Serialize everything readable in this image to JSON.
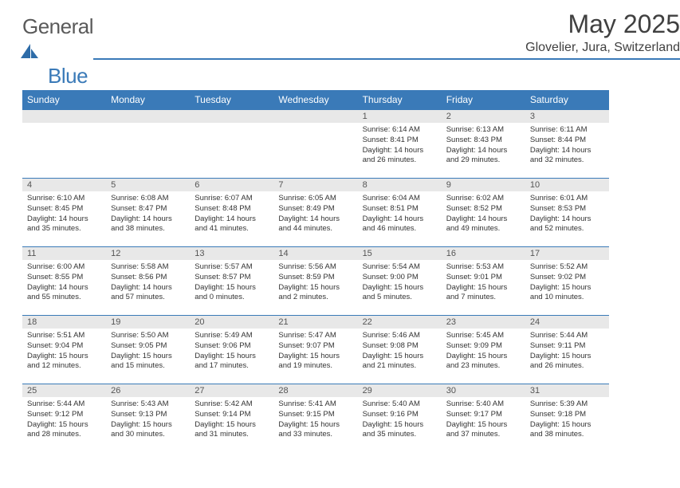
{
  "brand": {
    "part1": "General",
    "part2": "Blue"
  },
  "title": "May 2025",
  "location": "Glovelier, Jura, Switzerland",
  "header_bg": "#3a7ab8",
  "header_fg": "#ffffff",
  "daynum_bg": "#e8e8e8",
  "border_color": "#3a7ab8",
  "body_fontsize": 9.5,
  "days_of_week": [
    "Sunday",
    "Monday",
    "Tuesday",
    "Wednesday",
    "Thursday",
    "Friday",
    "Saturday"
  ],
  "weeks": [
    [
      {
        "n": "",
        "lines": []
      },
      {
        "n": "",
        "lines": []
      },
      {
        "n": "",
        "lines": []
      },
      {
        "n": "",
        "lines": []
      },
      {
        "n": "1",
        "lines": [
          "Sunrise: 6:14 AM",
          "Sunset: 8:41 PM",
          "Daylight: 14 hours and 26 minutes."
        ]
      },
      {
        "n": "2",
        "lines": [
          "Sunrise: 6:13 AM",
          "Sunset: 8:43 PM",
          "Daylight: 14 hours and 29 minutes."
        ]
      },
      {
        "n": "3",
        "lines": [
          "Sunrise: 6:11 AM",
          "Sunset: 8:44 PM",
          "Daylight: 14 hours and 32 minutes."
        ]
      }
    ],
    [
      {
        "n": "4",
        "lines": [
          "Sunrise: 6:10 AM",
          "Sunset: 8:45 PM",
          "Daylight: 14 hours and 35 minutes."
        ]
      },
      {
        "n": "5",
        "lines": [
          "Sunrise: 6:08 AM",
          "Sunset: 8:47 PM",
          "Daylight: 14 hours and 38 minutes."
        ]
      },
      {
        "n": "6",
        "lines": [
          "Sunrise: 6:07 AM",
          "Sunset: 8:48 PM",
          "Daylight: 14 hours and 41 minutes."
        ]
      },
      {
        "n": "7",
        "lines": [
          "Sunrise: 6:05 AM",
          "Sunset: 8:49 PM",
          "Daylight: 14 hours and 44 minutes."
        ]
      },
      {
        "n": "8",
        "lines": [
          "Sunrise: 6:04 AM",
          "Sunset: 8:51 PM",
          "Daylight: 14 hours and 46 minutes."
        ]
      },
      {
        "n": "9",
        "lines": [
          "Sunrise: 6:02 AM",
          "Sunset: 8:52 PM",
          "Daylight: 14 hours and 49 minutes."
        ]
      },
      {
        "n": "10",
        "lines": [
          "Sunrise: 6:01 AM",
          "Sunset: 8:53 PM",
          "Daylight: 14 hours and 52 minutes."
        ]
      }
    ],
    [
      {
        "n": "11",
        "lines": [
          "Sunrise: 6:00 AM",
          "Sunset: 8:55 PM",
          "Daylight: 14 hours and 55 minutes."
        ]
      },
      {
        "n": "12",
        "lines": [
          "Sunrise: 5:58 AM",
          "Sunset: 8:56 PM",
          "Daylight: 14 hours and 57 minutes."
        ]
      },
      {
        "n": "13",
        "lines": [
          "Sunrise: 5:57 AM",
          "Sunset: 8:57 PM",
          "Daylight: 15 hours and 0 minutes."
        ]
      },
      {
        "n": "14",
        "lines": [
          "Sunrise: 5:56 AM",
          "Sunset: 8:59 PM",
          "Daylight: 15 hours and 2 minutes."
        ]
      },
      {
        "n": "15",
        "lines": [
          "Sunrise: 5:54 AM",
          "Sunset: 9:00 PM",
          "Daylight: 15 hours and 5 minutes."
        ]
      },
      {
        "n": "16",
        "lines": [
          "Sunrise: 5:53 AM",
          "Sunset: 9:01 PM",
          "Daylight: 15 hours and 7 minutes."
        ]
      },
      {
        "n": "17",
        "lines": [
          "Sunrise: 5:52 AM",
          "Sunset: 9:02 PM",
          "Daylight: 15 hours and 10 minutes."
        ]
      }
    ],
    [
      {
        "n": "18",
        "lines": [
          "Sunrise: 5:51 AM",
          "Sunset: 9:04 PM",
          "Daylight: 15 hours and 12 minutes."
        ]
      },
      {
        "n": "19",
        "lines": [
          "Sunrise: 5:50 AM",
          "Sunset: 9:05 PM",
          "Daylight: 15 hours and 15 minutes."
        ]
      },
      {
        "n": "20",
        "lines": [
          "Sunrise: 5:49 AM",
          "Sunset: 9:06 PM",
          "Daylight: 15 hours and 17 minutes."
        ]
      },
      {
        "n": "21",
        "lines": [
          "Sunrise: 5:47 AM",
          "Sunset: 9:07 PM",
          "Daylight: 15 hours and 19 minutes."
        ]
      },
      {
        "n": "22",
        "lines": [
          "Sunrise: 5:46 AM",
          "Sunset: 9:08 PM",
          "Daylight: 15 hours and 21 minutes."
        ]
      },
      {
        "n": "23",
        "lines": [
          "Sunrise: 5:45 AM",
          "Sunset: 9:09 PM",
          "Daylight: 15 hours and 23 minutes."
        ]
      },
      {
        "n": "24",
        "lines": [
          "Sunrise: 5:44 AM",
          "Sunset: 9:11 PM",
          "Daylight: 15 hours and 26 minutes."
        ]
      }
    ],
    [
      {
        "n": "25",
        "lines": [
          "Sunrise: 5:44 AM",
          "Sunset: 9:12 PM",
          "Daylight: 15 hours and 28 minutes."
        ]
      },
      {
        "n": "26",
        "lines": [
          "Sunrise: 5:43 AM",
          "Sunset: 9:13 PM",
          "Daylight: 15 hours and 30 minutes."
        ]
      },
      {
        "n": "27",
        "lines": [
          "Sunrise: 5:42 AM",
          "Sunset: 9:14 PM",
          "Daylight: 15 hours and 31 minutes."
        ]
      },
      {
        "n": "28",
        "lines": [
          "Sunrise: 5:41 AM",
          "Sunset: 9:15 PM",
          "Daylight: 15 hours and 33 minutes."
        ]
      },
      {
        "n": "29",
        "lines": [
          "Sunrise: 5:40 AM",
          "Sunset: 9:16 PM",
          "Daylight: 15 hours and 35 minutes."
        ]
      },
      {
        "n": "30",
        "lines": [
          "Sunrise: 5:40 AM",
          "Sunset: 9:17 PM",
          "Daylight: 15 hours and 37 minutes."
        ]
      },
      {
        "n": "31",
        "lines": [
          "Sunrise: 5:39 AM",
          "Sunset: 9:18 PM",
          "Daylight: 15 hours and 38 minutes."
        ]
      }
    ]
  ]
}
